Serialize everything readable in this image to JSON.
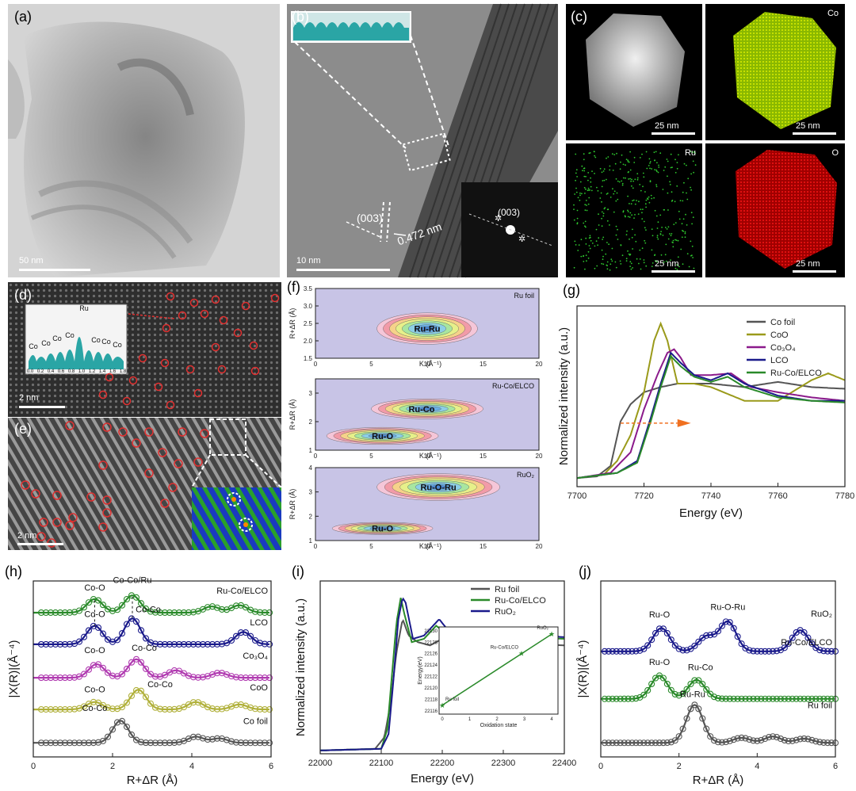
{
  "panels": {
    "a": {
      "label": "(a)",
      "scale": "50 nm"
    },
    "b": {
      "label": "(b)",
      "scale": "10 nm",
      "plane": "(003)",
      "fft_plane": "(003)",
      "dspacing": "0.472 nm"
    },
    "c": {
      "label": "(c)",
      "scale": "25 nm",
      "maps": [
        "Co",
        "Ru",
        "O"
      ]
    },
    "d": {
      "label": "(d)",
      "scale": "2 nm",
      "profile_labels": [
        "Co",
        "Co",
        "Co",
        "Co",
        "Ru",
        "Co",
        "Co",
        "Co"
      ],
      "profile_ticks": [
        "0.0",
        "0.2",
        "0.4",
        "0.6",
        "0.8",
        "1.0",
        "1.2",
        "1.4",
        "1.6",
        "1.8"
      ]
    },
    "e": {
      "label": "(e)",
      "scale": "2 nm"
    },
    "f": {
      "label": "(f)",
      "subplots": [
        {
          "name": "Ru foil",
          "peaks": [
            "Ru-Ru"
          ],
          "yticks": [
            "1.5",
            "2.0",
            "2.5",
            "3.0",
            "3.5"
          ],
          "ylabel": "R+ΔR (Å)"
        },
        {
          "name": "Ru-Co/ELCO",
          "peaks": [
            "Ru-Co",
            "Ru-O"
          ],
          "yticks": [
            "1",
            "2",
            "3"
          ],
          "ylabel": "R+ΔR (Å)"
        },
        {
          "name": "RuO₂",
          "peaks": [
            "Ru-O-Ru",
            "Ru-O"
          ],
          "yticks": [
            "1",
            "2",
            "3",
            "4"
          ],
          "ylabel": "R+ΔR (Å)"
        }
      ],
      "xticks": [
        "0",
        "5",
        "10",
        "15",
        "20"
      ],
      "xlabel": "K (Å⁻¹)"
    },
    "g": {
      "label": "(g)"
    },
    "h": {
      "label": "(h)"
    },
    "i": {
      "label": "(i)"
    },
    "j": {
      "label": "(j)"
    }
  },
  "chart_data": [
    {
      "id": "g",
      "type": "line",
      "xlabel": "Energy (eV)",
      "ylabel": "Normalized intensity (a.u.)",
      "xlim": [
        7700,
        7780
      ],
      "xticks": [
        "7700",
        "7720",
        "7740",
        "7760",
        "7780"
      ],
      "legend": [
        "Co foil",
        "CoO",
        "Co₃O₄",
        "LCO",
        "Ru-Co/ELCO"
      ],
      "colors": [
        "#555555",
        "#9a9a1a",
        "#8b1a8b",
        "#1a1a8b",
        "#2a8a2a"
      ],
      "series": [
        {
          "name": "Co foil",
          "x": [
            7700,
            7706,
            7710,
            7713,
            7716,
            7720,
            7725,
            7730,
            7740,
            7750,
            7760,
            7770,
            7780
          ],
          "y": [
            0.05,
            0.06,
            0.12,
            0.38,
            0.48,
            0.55,
            0.58,
            0.6,
            0.6,
            0.58,
            0.61,
            0.58,
            0.57
          ]
        },
        {
          "name": "CoO",
          "x": [
            7700,
            7708,
            7712,
            7716,
            7720,
            7723,
            7725,
            7727,
            7730,
            7735,
            7740,
            7750,
            7760,
            7770,
            7775,
            7780
          ],
          "y": [
            0.05,
            0.07,
            0.15,
            0.3,
            0.55,
            0.85,
            0.95,
            0.85,
            0.6,
            0.6,
            0.58,
            0.5,
            0.5,
            0.62,
            0.66,
            0.62
          ]
        },
        {
          "name": "Co₃O₄",
          "x": [
            7700,
            7710,
            7716,
            7720,
            7724,
            7727,
            7729,
            7731,
            7734,
            7740,
            7746,
            7752,
            7760,
            7770,
            7780
          ],
          "y": [
            0.05,
            0.08,
            0.2,
            0.45,
            0.65,
            0.78,
            0.8,
            0.75,
            0.65,
            0.65,
            0.66,
            0.58,
            0.55,
            0.52,
            0.5
          ]
        },
        {
          "name": "LCO",
          "x": [
            7700,
            7712,
            7718,
            7722,
            7725,
            7728,
            7731,
            7735,
            7740,
            7745,
            7750,
            7760,
            7770,
            7780
          ],
          "y": [
            0.05,
            0.08,
            0.15,
            0.4,
            0.6,
            0.78,
            0.72,
            0.65,
            0.62,
            0.66,
            0.6,
            0.53,
            0.5,
            0.5
          ]
        },
        {
          "name": "Ru-Co/ELCO",
          "x": [
            7700,
            7712,
            7718,
            7722,
            7725,
            7728,
            7731,
            7735,
            7740,
            7745,
            7750,
            7760,
            7770,
            7780
          ],
          "y": [
            0.05,
            0.08,
            0.14,
            0.38,
            0.58,
            0.76,
            0.7,
            0.64,
            0.61,
            0.64,
            0.58,
            0.52,
            0.5,
            0.49
          ]
        }
      ]
    },
    {
      "id": "h",
      "type": "line",
      "xlabel": "R+ΔR (Å)",
      "ylabel": "|X(R)|(Å⁻⁴)",
      "xlim": [
        0,
        6
      ],
      "xticks": [
        "0",
        "2",
        "4",
        "6"
      ],
      "series_labels": [
        "Ru-Co/ELCO",
        "LCO",
        "Co₃O₄",
        "CoO",
        "Co foil"
      ],
      "colors": [
        "#2a8a2a",
        "#1a1a8b",
        "#b03ab0",
        "#b0b03a",
        "#555555"
      ],
      "peak_labels": [
        "Co-O",
        "Co-Co/Ru",
        "Co-O",
        "Co-Co",
        "Co-O",
        "Co-Co",
        "Co-O",
        "Co-Co",
        "Co-Co"
      ],
      "series": [
        {
          "name": "Ru-Co/ELCO",
          "peaks": [
            [
              1.55,
              0.55
            ],
            [
              2.5,
              0.7
            ],
            [
              4.5,
              0.25
            ],
            [
              5.2,
              0.3
            ]
          ]
        },
        {
          "name": "LCO",
          "peaks": [
            [
              1.55,
              0.75
            ],
            [
              2.5,
              1.05
            ],
            [
              5.3,
              0.5
            ]
          ]
        },
        {
          "name": "Co₃O₄",
          "peaks": [
            [
              1.6,
              0.55
            ],
            [
              2.6,
              0.75
            ],
            [
              3.6,
              0.3
            ],
            [
              4.7,
              0.2
            ]
          ]
        },
        {
          "name": "CoO",
          "peaks": [
            [
              1.55,
              0.3
            ],
            [
              2.65,
              0.8
            ],
            [
              4.1,
              0.3
            ],
            [
              5.2,
              0.2
            ]
          ]
        },
        {
          "name": "Co foil",
          "peaks": [
            [
              2.2,
              0.9
            ],
            [
              4.1,
              0.25
            ],
            [
              4.7,
              0.18
            ]
          ]
        }
      ]
    },
    {
      "id": "i",
      "type": "line",
      "xlabel": "Energy (eV)",
      "ylabel": "Normalized intensity (a.u.)",
      "xlim": [
        22000,
        22400
      ],
      "xticks": [
        "22000",
        "22100",
        "22200",
        "22300",
        "22400"
      ],
      "legend": [
        "Ru foil",
        "Ru-Co/ELCO",
        "RuO₂"
      ],
      "colors": [
        "#555555",
        "#2a8a2a",
        "#1a1a8b"
      ],
      "series": [
        {
          "name": "Ru foil",
          "x": [
            22000,
            22090,
            22105,
            22115,
            22125,
            22135,
            22145,
            22160,
            22180,
            22200,
            22250,
            22300,
            22400
          ],
          "y": [
            0.02,
            0.03,
            0.1,
            0.3,
            0.62,
            0.82,
            0.72,
            0.68,
            0.66,
            0.7,
            0.66,
            0.68,
            0.66
          ]
        },
        {
          "name": "Ru-Co/ELCO",
          "x": [
            22000,
            22100,
            22110,
            22118,
            22125,
            22132,
            22138,
            22150,
            22170,
            22190,
            22210,
            22250,
            22300,
            22400
          ],
          "y": [
            0.02,
            0.03,
            0.15,
            0.5,
            0.8,
            0.95,
            0.85,
            0.68,
            0.7,
            0.78,
            0.72,
            0.7,
            0.72,
            0.7
          ]
        },
        {
          "name": "RuO₂",
          "x": [
            22000,
            22100,
            22112,
            22120,
            22128,
            22135,
            22140,
            22152,
            22170,
            22195,
            22212,
            22250,
            22300,
            22400
          ],
          "y": [
            0.02,
            0.03,
            0.12,
            0.45,
            0.82,
            0.95,
            0.92,
            0.7,
            0.72,
            0.82,
            0.74,
            0.72,
            0.74,
            0.71
          ]
        }
      ],
      "inset": {
        "xlabel": "Oxidation state",
        "ylabel": "Energy(eV)",
        "xticks": [
          "0",
          "1",
          "2",
          "3",
          "4"
        ],
        "yticks": [
          "22116",
          "22118",
          "22120",
          "22122",
          "22124",
          "22126",
          "22128",
          "22130"
        ],
        "points": [
          {
            "label": "Ru foil",
            "x": 0,
            "y": 22117
          },
          {
            "label": "Ru-Co/ELCO",
            "x": 2.9,
            "y": 22126
          },
          {
            "label": "RuO₂",
            "x": 4,
            "y": 22129.4
          }
        ]
      }
    },
    {
      "id": "j",
      "type": "line",
      "xlabel": "R+ΔR (Å)",
      "ylabel": "|X(R)|(Å⁻⁴)",
      "xlim": [
        0,
        6
      ],
      "xticks": [
        "0",
        "2",
        "4",
        "6"
      ],
      "series_labels": [
        "RuO₂",
        "Ru-Co/ELCO",
        "Ru foil"
      ],
      "colors": [
        "#1a1a8b",
        "#2a8a2a",
        "#555555"
      ],
      "peak_labels": [
        "Ru-O",
        "Ru-O-Ru",
        "Ru-O",
        "Ru-Co",
        "Ru-Ru"
      ],
      "series": [
        {
          "name": "RuO₂",
          "peaks": [
            [
              1.55,
              0.55
            ],
            [
              2.7,
              0.35
            ],
            [
              3.25,
              0.7
            ],
            [
              5.1,
              0.5
            ]
          ]
        },
        {
          "name": "Ru-Co/ELCO",
          "peaks": [
            [
              1.5,
              0.55
            ],
            [
              2.45,
              0.45
            ]
          ]
        },
        {
          "name": "Ru foil",
          "peaks": [
            [
              2.4,
              0.9
            ],
            [
              3.6,
              0.12
            ],
            [
              4.4,
              0.15
            ],
            [
              5.2,
              0.1
            ]
          ]
        }
      ]
    }
  ]
}
